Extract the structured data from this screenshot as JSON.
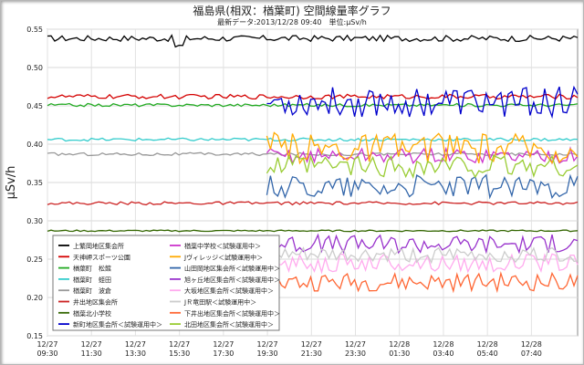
{
  "title": "福島県(相双：楢葉町) 空間線量率グラフ",
  "subtitle": "最新データ:2013/12/28 09:40　単位:μSv/h",
  "chart_data": {
    "type": "line",
    "ylabel": "μSv/h",
    "ylim": [
      0.15,
      0.55
    ],
    "yticks": [
      "0.15",
      "0.20",
      "0.25",
      "0.30",
      "0.35",
      "0.40",
      "0.45",
      "0.50",
      "0.55"
    ],
    "grid": true,
    "legend_position": "bottom-left",
    "x_range": [
      "2013-12-27 09:30",
      "2013-12-28 09:40"
    ],
    "x_tick_labels": [
      [
        "12/27",
        "09:30"
      ],
      [
        "12/27",
        "11:30"
      ],
      [
        "12/27",
        "13:30"
      ],
      [
        "12/27",
        "15:30"
      ],
      [
        "12/27",
        "17:30"
      ],
      [
        "12/27",
        "19:30"
      ],
      [
        "12/27",
        "21:30"
      ],
      [
        "12/27",
        "23:30"
      ],
      [
        "12/28",
        "01:30"
      ],
      [
        "12/28",
        "03:40"
      ],
      [
        "12/28",
        "05:40"
      ],
      [
        "12/28",
        "07:40"
      ]
    ],
    "series": [
      {
        "name": "上繁岡地区集会所",
        "color": "#000000",
        "start": "2013-12-27 09:30",
        "base": 0.538,
        "noise": 0.004
      },
      {
        "name": "天神岬スポーツ公園",
        "color": "#d40000",
        "start": "2013-12-27 09:30",
        "base": 0.462,
        "noise": 0.003
      },
      {
        "name": "楢葉町　松館",
        "color": "#22aa22",
        "start": "2013-12-27 09:30",
        "base": 0.451,
        "noise": 0.002
      },
      {
        "name": "楢葉町　蛭田",
        "color": "#33cccc",
        "start": "2013-12-27 09:30",
        "base": 0.406,
        "noise": 0.002
      },
      {
        "name": "楢葉町　波倉",
        "color": "#999999",
        "start": "2013-12-27 09:30",
        "base": 0.387,
        "noise": 0.002
      },
      {
        "name": "井出地区集会所",
        "color": "#cc2222",
        "start": "2013-12-27 09:30",
        "base": 0.323,
        "noise": 0.002
      },
      {
        "name": "楢葉北小学校",
        "color": "#336600",
        "start": "2013-12-27 09:30",
        "base": 0.287,
        "noise": 0.001
      },
      {
        "name": "新町地区集会所＜試験運用中＞",
        "color": "#0000cc",
        "start": "2013-12-27 19:30",
        "base": 0.455,
        "noise": 0.02
      },
      {
        "name": "楢葉中学校＜試験運用中＞",
        "color": "#cc33cc",
        "start": "2013-12-27 19:30",
        "base": 0.385,
        "noise": 0.01
      },
      {
        "name": "Jヴィレッジ＜試験運用中＞",
        "color": "#ffaa00",
        "start": "2013-12-27 19:30",
        "base": 0.395,
        "noise": 0.02
      },
      {
        "name": "山田岡地区集会所＜試験運用中＞",
        "color": "#3366aa",
        "start": "2013-12-27 19:30",
        "base": 0.345,
        "noise": 0.015
      },
      {
        "name": "旭ヶ丘地区集会所＜試験運用中＞",
        "color": "#9933cc",
        "start": "2013-12-27 19:30",
        "base": 0.27,
        "noise": 0.012
      },
      {
        "name": "大坂地区集会所＜試験運用中＞",
        "color": "#ffaaee",
        "start": "2013-12-27 19:30",
        "base": 0.245,
        "noise": 0.012
      },
      {
        "name": "JＲ竜田駅＜試験運用中＞",
        "color": "#cccccc",
        "start": "2013-12-27 19:30",
        "base": 0.255,
        "noise": 0.01
      },
      {
        "name": "下井出地区集会所＜試験運用中＞",
        "color": "#ff6633",
        "start": "2013-12-27 19:30",
        "base": 0.22,
        "noise": 0.012
      },
      {
        "name": "北田地区集会所＜試験運用中＞",
        "color": "#99cc33",
        "start": "2013-12-27 19:30",
        "base": 0.37,
        "noise": 0.015
      }
    ]
  }
}
